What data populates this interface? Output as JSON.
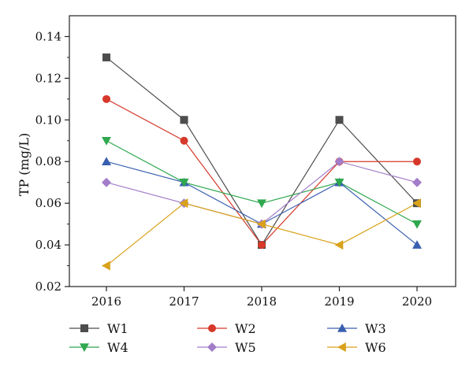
{
  "chart_data": {
    "type": "line",
    "ylabel": "TP (mg/L)",
    "xlabel": "",
    "x": [
      "2016",
      "2017",
      "2018",
      "2019",
      "2020"
    ],
    "ylim": [
      0.02,
      0.15
    ],
    "yticks": [
      "0.02",
      "0.04",
      "0.06",
      "0.08",
      "0.10",
      "0.12",
      "0.14"
    ],
    "grid": false,
    "legend_position": "bottom",
    "series": [
      {
        "name": "W1",
        "color": "#4d4d4d",
        "marker": "square",
        "values": [
          0.13,
          0.1,
          0.04,
          0.1,
          0.06
        ]
      },
      {
        "name": "W2",
        "color": "#d6382a",
        "marker": "circle",
        "values": [
          0.11,
          0.09,
          0.04,
          0.08,
          0.08
        ]
      },
      {
        "name": "W3",
        "color": "#3a5fb0",
        "marker": "triangle-up",
        "values": [
          0.08,
          0.07,
          0.05,
          0.07,
          0.04
        ]
      },
      {
        "name": "W4",
        "color": "#2fa84f",
        "marker": "triangle-down",
        "values": [
          0.09,
          0.07,
          0.06,
          0.07,
          0.05
        ]
      },
      {
        "name": "W5",
        "color": "#a37dc9",
        "marker": "diamond",
        "values": [
          0.07,
          0.06,
          0.05,
          0.08,
          0.07
        ]
      },
      {
        "name": "W6",
        "color": "#d9a21b",
        "marker": "triangle-left",
        "values": [
          0.03,
          0.06,
          0.05,
          0.04,
          0.06
        ]
      }
    ]
  }
}
